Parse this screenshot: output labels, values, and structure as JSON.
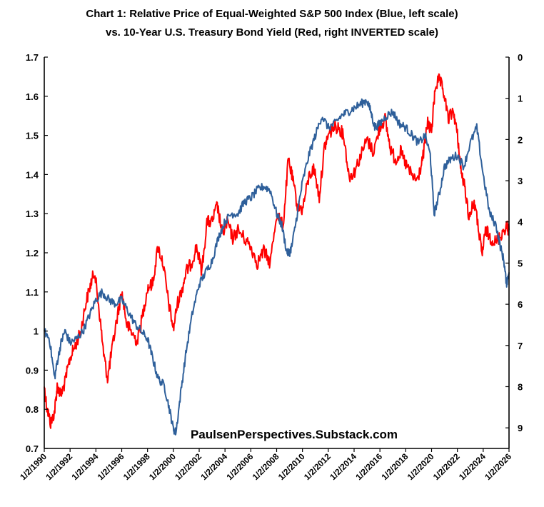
{
  "chart_data": {
    "type": "line",
    "title": "Chart 1: Relative Price of Equal-Weighted S&P 500 Index (Blue, left scale)",
    "subtitle": "vs. 10-Year U.S. Treasury Bond Yield (Red, right INVERTED scale)",
    "annotation": "PaulsenPerspectives.Substack.com",
    "grid": false,
    "x_range": [
      1990.0,
      2026.0
    ],
    "xtick_labels": [
      "1/2/1990",
      "1/2/1992",
      "1/2/1994",
      "1/2/1996",
      "1/2/1998",
      "1/2/2000",
      "1/2/2002",
      "1/2/2004",
      "1/2/2006",
      "1/2/2008",
      "1/2/2010",
      "1/2/2012",
      "1/2/2014",
      "1/2/2016",
      "1/2/2018",
      "1/2/2020",
      "1/2/2022",
      "1/2/2024",
      "1/2/2026"
    ],
    "xtick_years": [
      1990,
      1992,
      1994,
      1996,
      1998,
      2000,
      2002,
      2004,
      2006,
      2008,
      2010,
      2012,
      2014,
      2016,
      2018,
      2020,
      2022,
      2024,
      2026
    ],
    "left_axis": {
      "ylim": [
        0.7,
        1.7
      ],
      "tick_labels": [
        "1.7",
        "1.6",
        "1.5",
        "1.4",
        "1.3",
        "1.2",
        "1.1",
        "1",
        "0.9",
        "0.8",
        "0.7"
      ],
      "tick_values": [
        1.7,
        1.6,
        1.5,
        1.4,
        1.3,
        1.2,
        1.1,
        1.0,
        0.9,
        0.8,
        0.7
      ]
    },
    "right_axis": {
      "inverted": true,
      "ylim": [
        0,
        9.5
      ],
      "tick_labels": [
        "0",
        "1",
        "2",
        "3",
        "4",
        "5",
        "6",
        "7",
        "8",
        "9"
      ],
      "tick_values": [
        0,
        1,
        2,
        3,
        4,
        5,
        6,
        7,
        8,
        9
      ]
    },
    "series": [
      {
        "name": "Relative Price of Equal-Weighted S&P 500 Index",
        "axis": "left",
        "color": "#2e5f9a",
        "x": [
          1990.0,
          1990.4,
          1990.8,
          1991.0,
          1991.3,
          1991.6,
          1992.0,
          1992.5,
          1993.0,
          1993.5,
          1994.0,
          1994.5,
          1995.0,
          1995.5,
          1996.0,
          1996.5,
          1997.0,
          1997.5,
          1998.0,
          1998.4,
          1998.8,
          1999.3,
          1999.7,
          2000.0,
          2000.2,
          2000.6,
          2001.0,
          2001.5,
          2002.0,
          2002.5,
          2003.0,
          2003.5,
          2004.0,
          2004.5,
          2005.0,
          2005.5,
          2006.0,
          2006.5,
          2007.0,
          2007.5,
          2008.0,
          2008.4,
          2008.8,
          2009.0,
          2009.2,
          2009.6,
          2010.0,
          2010.5,
          2011.0,
          2011.5,
          2012.0,
          2012.5,
          2013.0,
          2013.5,
          2014.0,
          2014.5,
          2015.0,
          2015.3,
          2015.6,
          2016.0,
          2016.5,
          2017.0,
          2017.5,
          2018.0,
          2018.5,
          2019.0,
          2019.5,
          2019.9,
          2020.2,
          2020.6,
          2021.0,
          2021.5,
          2022.0,
          2022.5,
          2023.0,
          2023.5,
          2024.0,
          2024.5,
          2025.0,
          2025.3,
          2025.6,
          2025.8,
          2026.0
        ],
        "values": [
          1.0,
          0.98,
          0.88,
          0.92,
          0.97,
          1.0,
          0.97,
          0.98,
          1.0,
          1.04,
          1.08,
          1.1,
          1.08,
          1.07,
          1.08,
          1.05,
          1.02,
          1.0,
          0.98,
          0.93,
          0.88,
          0.86,
          0.8,
          0.75,
          0.74,
          0.85,
          0.95,
          1.05,
          1.12,
          1.15,
          1.18,
          1.24,
          1.28,
          1.3,
          1.3,
          1.33,
          1.34,
          1.36,
          1.37,
          1.36,
          1.3,
          1.27,
          1.2,
          1.2,
          1.22,
          1.3,
          1.38,
          1.45,
          1.5,
          1.55,
          1.52,
          1.53,
          1.55,
          1.56,
          1.57,
          1.58,
          1.59,
          1.56,
          1.52,
          1.53,
          1.55,
          1.56,
          1.53,
          1.52,
          1.5,
          1.48,
          1.5,
          1.45,
          1.3,
          1.35,
          1.42,
          1.44,
          1.45,
          1.42,
          1.48,
          1.52,
          1.4,
          1.3,
          1.27,
          1.22,
          1.18,
          1.12,
          1.15
        ]
      },
      {
        "name": "10-Year U.S. Treasury Bond Yield",
        "axis": "right",
        "color": "#ff0000",
        "x": [
          1990.0,
          1990.2,
          1990.5,
          1990.8,
          1991.0,
          1991.3,
          1991.6,
          1992.0,
          1992.4,
          1992.8,
          1993.2,
          1993.6,
          1993.9,
          1994.2,
          1994.6,
          1994.9,
          1995.2,
          1995.6,
          1996.0,
          1996.4,
          1996.8,
          1997.2,
          1997.6,
          1998.0,
          1998.4,
          1998.8,
          1999.2,
          1999.6,
          2000.0,
          2000.3,
          2000.7,
          2001.0,
          2001.4,
          2001.8,
          2002.2,
          2002.6,
          2003.0,
          2003.4,
          2003.8,
          2004.2,
          2004.6,
          2005.0,
          2005.5,
          2006.0,
          2006.5,
          2007.0,
          2007.5,
          2008.0,
          2008.5,
          2008.9,
          2009.2,
          2009.6,
          2010.0,
          2010.5,
          2010.9,
          2011.3,
          2011.7,
          2012.0,
          2012.4,
          2012.8,
          2013.2,
          2013.6,
          2014.0,
          2014.5,
          2015.0,
          2015.5,
          2016.0,
          2016.4,
          2016.8,
          2017.2,
          2017.6,
          2018.0,
          2018.5,
          2018.9,
          2019.3,
          2019.7,
          2020.0,
          2020.3,
          2020.6,
          2020.9,
          2021.3,
          2021.7,
          2022.0,
          2022.3,
          2022.6,
          2022.9,
          2023.3,
          2023.7,
          2023.9,
          2024.2,
          2024.6,
          2025.0,
          2025.4,
          2025.8,
          2026.0
        ],
        "values": [
          8.0,
          8.5,
          8.9,
          8.6,
          8.0,
          8.2,
          7.9,
          7.3,
          7.0,
          6.7,
          6.0,
          5.5,
          5.2,
          6.0,
          7.2,
          7.8,
          7.2,
          6.4,
          5.7,
          6.5,
          6.7,
          6.9,
          6.3,
          5.6,
          5.5,
          4.6,
          5.0,
          5.9,
          6.6,
          6.0,
          5.6,
          5.2,
          5.0,
          4.6,
          5.2,
          4.0,
          4.0,
          3.6,
          4.3,
          4.0,
          4.4,
          4.2,
          4.4,
          4.6,
          5.0,
          4.7,
          5.0,
          3.8,
          4.1,
          2.5,
          2.9,
          3.6,
          3.7,
          2.9,
          2.7,
          3.4,
          2.2,
          1.9,
          1.7,
          1.7,
          1.9,
          2.9,
          2.8,
          2.4,
          2.0,
          2.3,
          1.7,
          1.5,
          2.2,
          2.5,
          2.3,
          2.6,
          2.9,
          3.0,
          2.5,
          1.6,
          1.8,
          0.7,
          0.55,
          0.8,
          1.5,
          1.3,
          1.9,
          2.8,
          3.2,
          3.9,
          3.5,
          4.3,
          4.8,
          4.2,
          4.4,
          4.5,
          4.3,
          4.1,
          4.2
        ]
      }
    ]
  }
}
